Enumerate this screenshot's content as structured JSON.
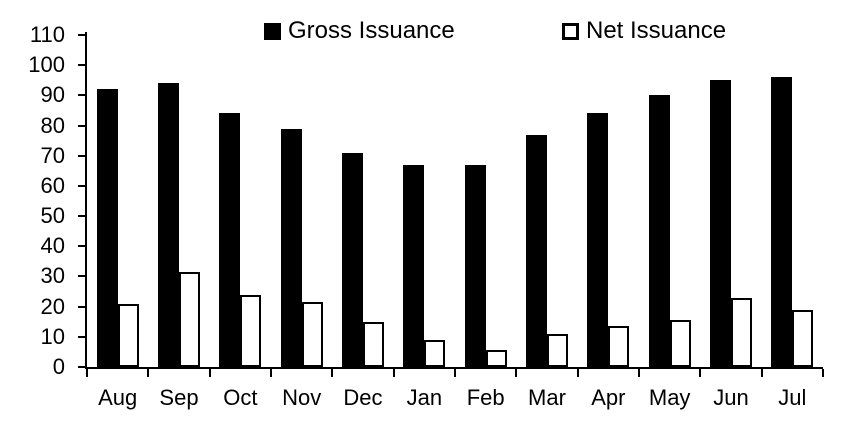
{
  "chart_data": {
    "type": "bar",
    "title": "",
    "xlabel": "",
    "ylabel": "",
    "categories": [
      "Aug",
      "Sep",
      "Oct",
      "Nov",
      "Dec",
      "Jan",
      "Feb",
      "Mar",
      "Apr",
      "May",
      "Jun",
      "Jul"
    ],
    "series": [
      {
        "name": "Gross Issuance",
        "values": [
          92,
          94,
          84,
          79,
          71,
          67,
          67,
          77,
          84,
          90,
          95,
          96
        ],
        "fill": "#000000",
        "stroke": "#000000"
      },
      {
        "name": "Net Issuance",
        "values": [
          21,
          31.5,
          24,
          21.5,
          15,
          9,
          5.5,
          11,
          13.5,
          15.5,
          23,
          19
        ],
        "fill": "#FFFFFF",
        "stroke": "#000000"
      }
    ],
    "ylim": [
      0,
      110
    ],
    "yticks": [
      0,
      10,
      20,
      30,
      40,
      50,
      60,
      70,
      80,
      90,
      100,
      110
    ],
    "grid": false,
    "legend_position": "top"
  },
  "colors": {
    "background": "#FFFFFF",
    "axis": "#000000",
    "text": "#000000"
  }
}
